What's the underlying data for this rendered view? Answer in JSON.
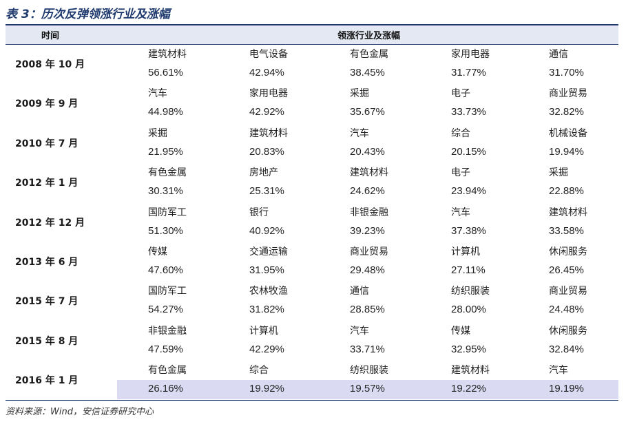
{
  "header": {
    "title": "表 3：历次反弹领涨行业及涨幅"
  },
  "table": {
    "columns": [
      "时间",
      "领涨行业及涨幅"
    ],
    "rows": [
      {
        "date": "2008 年 10 月",
        "items": [
          {
            "industry": "建筑材料",
            "change": "56.61%"
          },
          {
            "industry": "电气设备",
            "change": "42.94%"
          },
          {
            "industry": "有色金属",
            "change": "38.45%"
          },
          {
            "industry": "家用电器",
            "change": "31.77%"
          },
          {
            "industry": "通信",
            "change": "31.70%"
          }
        ]
      },
      {
        "date": "2009 年 9 月",
        "items": [
          {
            "industry": "汽车",
            "change": "44.98%"
          },
          {
            "industry": "家用电器",
            "change": "42.92%"
          },
          {
            "industry": "采掘",
            "change": "35.67%"
          },
          {
            "industry": "电子",
            "change": "33.73%"
          },
          {
            "industry": "商业贸易",
            "change": "32.82%"
          }
        ]
      },
      {
        "date": "2010 年 7 月",
        "items": [
          {
            "industry": "采掘",
            "change": "21.95%"
          },
          {
            "industry": "建筑材料",
            "change": "20.83%"
          },
          {
            "industry": "汽车",
            "change": "20.43%"
          },
          {
            "industry": "综合",
            "change": "20.15%"
          },
          {
            "industry": "机械设备",
            "change": "19.94%"
          }
        ]
      },
      {
        "date": "2012 年 1 月",
        "items": [
          {
            "industry": "有色金属",
            "change": "30.31%"
          },
          {
            "industry": "房地产",
            "change": "25.31%"
          },
          {
            "industry": "建筑材料",
            "change": "24.62%"
          },
          {
            "industry": "电子",
            "change": "23.94%"
          },
          {
            "industry": "采掘",
            "change": "22.88%"
          }
        ]
      },
      {
        "date": "2012 年 12 月",
        "items": [
          {
            "industry": "国防军工",
            "change": "51.30%"
          },
          {
            "industry": "银行",
            "change": "40.92%"
          },
          {
            "industry": "非银金融",
            "change": "39.23%"
          },
          {
            "industry": "汽车",
            "change": "37.38%"
          },
          {
            "industry": "建筑材料",
            "change": "33.58%"
          }
        ]
      },
      {
        "date": "2013 年 6 月",
        "items": [
          {
            "industry": "传媒",
            "change": "47.60%"
          },
          {
            "industry": "交通运输",
            "change": "31.95%"
          },
          {
            "industry": "商业贸易",
            "change": "29.48%"
          },
          {
            "industry": "计算机",
            "change": "27.11%"
          },
          {
            "industry": "休闲服务",
            "change": "26.45%"
          }
        ]
      },
      {
        "date": "2015 年 7 月",
        "items": [
          {
            "industry": "国防军工",
            "change": "54.27%"
          },
          {
            "industry": "农林牧渔",
            "change": "31.82%"
          },
          {
            "industry": "通信",
            "change": "28.85%"
          },
          {
            "industry": "纺织服装",
            "change": "28.00%"
          },
          {
            "industry": "商业贸易",
            "change": "24.48%"
          }
        ]
      },
      {
        "date": "2015 年 8 月",
        "items": [
          {
            "industry": "非银金融",
            "change": "47.59%"
          },
          {
            "industry": "计算机",
            "change": "42.29%"
          },
          {
            "industry": "汽车",
            "change": "33.71%"
          },
          {
            "industry": "传媒",
            "change": "32.95%"
          },
          {
            "industry": "休闲服务",
            "change": "32.84%"
          }
        ]
      },
      {
        "date": "2016 年 1 月",
        "items": [
          {
            "industry": "有色金属",
            "change": "26.16%"
          },
          {
            "industry": "综合",
            "change": "19.92%"
          },
          {
            "industry": "纺织服装",
            "change": "19.57%"
          },
          {
            "industry": "建筑材料",
            "change": "19.22%"
          },
          {
            "industry": "汽车",
            "change": "19.19%"
          }
        ]
      }
    ]
  },
  "source": "资料来源：Wind，安信证券研究中心"
}
